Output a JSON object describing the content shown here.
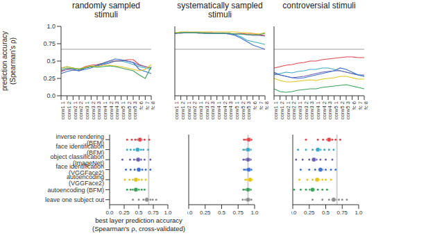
{
  "chart_data": [
    {
      "type": "line",
      "title": "randomly sampled stimuli",
      "y_label": "prediction accuracy (Spearman's ρ)",
      "categories": [
        "conv1 1",
        "conv1 2",
        "conv2 1",
        "conv2 2",
        "conv3 1",
        "conv3 2",
        "conv3 3",
        "conv4 1",
        "conv4 2",
        "conv4 3",
        "conv5 1",
        "conv5 2",
        "conv5 3",
        "fc 6",
        "fc 7",
        "fc 8"
      ],
      "ylim": [
        0,
        1
      ],
      "yticks": [
        {
          "value": 0,
          "label": "0.0"
        },
        0.25,
        0.5,
        0.75,
        {
          "value": 1,
          "label": "1.0"
        }
      ],
      "noise_ceiling": 0.67,
      "series": [
        {
          "color": "#e0474c",
          "values": [
            0.35,
            0.38,
            0.4,
            0.38,
            0.42,
            0.44,
            0.45,
            0.47,
            0.5,
            0.5,
            0.5,
            0.52,
            0.52,
            0.45,
            0.42,
            0.4
          ]
        },
        {
          "color": "#3aa9c4",
          "values": [
            0.4,
            0.42,
            0.4,
            0.38,
            0.4,
            0.42,
            0.44,
            0.46,
            0.48,
            0.5,
            0.5,
            0.48,
            0.45,
            0.42,
            0.4,
            0.38
          ]
        },
        {
          "color": "#6d5fb0",
          "values": [
            0.36,
            0.38,
            0.38,
            0.36,
            0.4,
            0.42,
            0.43,
            0.45,
            0.47,
            0.5,
            0.51,
            0.5,
            0.48,
            0.44,
            0.42,
            0.4
          ]
        },
        {
          "color": "#3d6fd0",
          "values": [
            0.32,
            0.35,
            0.37,
            0.36,
            0.38,
            0.4,
            0.44,
            0.47,
            0.5,
            0.53,
            0.52,
            0.5,
            0.48,
            0.38,
            0.35,
            0.32
          ]
        },
        {
          "color": "#e3c41c",
          "values": [
            0.4,
            0.42,
            0.4,
            0.39,
            0.41,
            0.43,
            0.42,
            0.44,
            0.44,
            0.43,
            0.42,
            0.4,
            0.38,
            0.36,
            0.38,
            0.45
          ]
        },
        {
          "color": "#3aa35a",
          "values": [
            0.38,
            0.4,
            0.39,
            0.38,
            0.4,
            0.42,
            0.41,
            0.42,
            0.43,
            0.42,
            0.4,
            0.38,
            0.36,
            0.3,
            0.25,
            0.42
          ]
        }
      ]
    },
    {
      "type": "line",
      "title": "systematically sampled stimuli",
      "tick_labels": "x",
      "categories": [
        "conv1 1",
        "conv1 2",
        "conv2 1",
        "conv2 2",
        "conv3 1",
        "conv3 2",
        "conv3 3",
        "conv4 1",
        "conv4 2",
        "conv4 3",
        "conv5 1",
        "conv5 2",
        "conv5 3",
        "fc 6",
        "fc 7",
        "fc 8"
      ],
      "ylim": [
        0,
        1
      ],
      "yticks": [
        {
          "value": 0,
          "label": "0.0"
        },
        0.25,
        0.5,
        0.75,
        {
          "value": 1,
          "label": "1.0"
        }
      ],
      "noise_ceiling": 0.67,
      "series": [
        {
          "color": "#e0474c",
          "values": [
            0.9,
            0.91,
            0.91,
            0.91,
            0.91,
            0.91,
            0.91,
            0.9,
            0.9,
            0.9,
            0.89,
            0.9,
            0.89,
            0.89,
            0.88,
            0.87
          ]
        },
        {
          "color": "#3aa9c4",
          "values": [
            0.9,
            0.91,
            0.91,
            0.91,
            0.91,
            0.91,
            0.9,
            0.9,
            0.9,
            0.9,
            0.88,
            0.85,
            0.8,
            0.78,
            0.76,
            0.74
          ]
        },
        {
          "color": "#6d5fb0",
          "values": [
            0.9,
            0.9,
            0.91,
            0.91,
            0.9,
            0.9,
            0.9,
            0.9,
            0.9,
            0.89,
            0.89,
            0.89,
            0.88,
            0.87,
            0.87,
            0.86
          ]
        },
        {
          "color": "#3d6fd0",
          "values": [
            0.9,
            0.91,
            0.91,
            0.91,
            0.91,
            0.9,
            0.9,
            0.9,
            0.9,
            0.89,
            0.87,
            0.83,
            0.78,
            0.73,
            0.7,
            0.67
          ]
        },
        {
          "color": "#e3c41c",
          "values": [
            0.91,
            0.92,
            0.92,
            0.92,
            0.92,
            0.92,
            0.92,
            0.92,
            0.92,
            0.92,
            0.92,
            0.91,
            0.91,
            0.9,
            0.89,
            0.91
          ]
        },
        {
          "color": "#3aa35a",
          "values": [
            0.9,
            0.91,
            0.91,
            0.91,
            0.91,
            0.9,
            0.9,
            0.9,
            0.9,
            0.9,
            0.89,
            0.89,
            0.88,
            0.88,
            0.88,
            0.9
          ]
        }
      ]
    },
    {
      "type": "line",
      "title": "controversial stimuli",
      "tick_labels": "x",
      "categories": [
        "conv1 1",
        "conv1 2",
        "conv2 1",
        "conv2 2",
        "conv3 1",
        "conv3 2",
        "conv3 3",
        "conv4 1",
        "conv4 2",
        "conv4 3",
        "conv5 1",
        "conv5 2",
        "conv5 3",
        "fc 6",
        "fc 7",
        "fc 8"
      ],
      "ylim": [
        0,
        1
      ],
      "yticks": [
        {
          "value": 0,
          "label": "0.0"
        },
        0.25,
        0.5,
        0.75,
        {
          "value": 1,
          "label": "1.0"
        }
      ],
      "noise_ceiling": 0.67,
      "series": [
        {
          "color": "#e0474c",
          "values": [
            0.4,
            0.42,
            0.44,
            0.45,
            0.47,
            0.48,
            0.5,
            0.5,
            0.52,
            0.53,
            0.54,
            0.55,
            0.56,
            0.56,
            0.55,
            0.55
          ]
        },
        {
          "color": "#3aa9c4",
          "values": [
            0.3,
            0.32,
            0.34,
            0.33,
            0.35,
            0.36,
            0.38,
            0.38,
            0.4,
            0.4,
            0.38,
            0.36,
            0.34,
            0.32,
            0.3,
            0.28
          ]
        },
        {
          "color": "#6d5fb0",
          "values": [
            0.32,
            0.3,
            0.28,
            0.26,
            0.27,
            0.28,
            0.3,
            0.32,
            0.34,
            0.35,
            0.36,
            0.36,
            0.34,
            0.32,
            0.3,
            0.3
          ]
        },
        {
          "color": "#3d6fd0",
          "values": [
            0.34,
            0.3,
            0.28,
            0.26,
            0.25,
            0.26,
            0.28,
            0.3,
            0.32,
            0.34,
            0.36,
            0.4,
            0.38,
            0.34,
            0.3,
            0.28
          ]
        },
        {
          "color": "#e3c41c",
          "values": [
            0.25,
            0.22,
            0.2,
            0.2,
            0.21,
            0.22,
            0.23,
            0.22,
            0.24,
            0.25,
            0.26,
            0.28,
            0.28,
            0.26,
            0.24,
            0.24
          ]
        },
        {
          "color": "#3aa35a",
          "values": [
            0.1,
            0.06,
            0.05,
            0.06,
            0.08,
            0.09,
            0.1,
            0.1,
            0.12,
            0.13,
            0.14,
            0.15,
            0.16,
            0.14,
            0.12,
            0.1
          ]
        }
      ]
    },
    {
      "type": "strip",
      "x_label": "best layer prediction accuracy (Spearman's ρ, cross-validated)",
      "xlim": [
        0,
        1
      ],
      "xticks": [
        {
          "value": 0,
          "label": "0.0"
        },
        0.25,
        0.5,
        0.75,
        {
          "value": 1,
          "label": "1.0"
        }
      ],
      "noise_ceiling": 0.67,
      "series": [
        {
          "name": "inverse rendering (BFM)",
          "color": "#e0474c",
          "values": [
            0.3,
            0.38,
            0.44,
            0.48,
            0.52,
            0.55,
            0.6,
            0.68
          ],
          "mean": 0.52
        },
        {
          "name": "face identification (BFM)",
          "color": "#3aa9c4",
          "values": [
            0.3,
            0.36,
            0.42,
            0.47,
            0.5,
            0.54,
            0.58,
            0.66
          ],
          "mean": 0.48
        },
        {
          "name": "object classification (ImageNet)",
          "color": "#6d5fb0",
          "values": [
            0.22,
            0.35,
            0.42,
            0.46,
            0.5,
            0.54,
            0.6,
            0.7
          ],
          "mean": 0.49
        },
        {
          "name": "face identification (VGGFace2)",
          "color": "#3d6fd0",
          "values": [
            0.28,
            0.36,
            0.43,
            0.48,
            0.52,
            0.56,
            0.62,
            0.7
          ],
          "mean": 0.5
        },
        {
          "name": "autoencoding (VGGFace2)",
          "color": "#e3c41c",
          "values": [
            0.26,
            0.34,
            0.4,
            0.44,
            0.47,
            0.5,
            0.55,
            0.62
          ],
          "mean": 0.45
        },
        {
          "name": "autoencoding (BFM)",
          "color": "#3aa35a",
          "values": [
            0.3,
            0.36,
            0.4,
            0.44,
            0.47,
            0.5,
            0.55,
            0.6
          ],
          "mean": 0.45
        },
        {
          "name": "leave one subject out",
          "color": "#8c8c8c",
          "values": [
            0.4,
            0.5,
            0.58,
            0.62,
            0.66,
            0.7,
            0.74,
            0.8
          ],
          "mean": 0.64
        }
      ]
    },
    {
      "type": "strip",
      "tick_labels": "x",
      "xlim": [
        0,
        1
      ],
      "xticks": [
        {
          "value": 0,
          "label": "0.0"
        },
        0.25,
        0.5,
        0.75,
        {
          "value": 1,
          "label": "1.0"
        }
      ],
      "noise_ceiling": 0.9,
      "series": [
        {
          "color": "#e0474c",
          "values": [
            0.84,
            0.87,
            0.89,
            0.9,
            0.91,
            0.92,
            0.93,
            0.95
          ],
          "mean": 0.91
        },
        {
          "color": "#3aa9c4",
          "values": [
            0.83,
            0.86,
            0.88,
            0.9,
            0.91,
            0.92,
            0.93,
            0.94
          ],
          "mean": 0.9
        },
        {
          "color": "#6d5fb0",
          "values": [
            0.83,
            0.86,
            0.88,
            0.9,
            0.91,
            0.92,
            0.93,
            0.94
          ],
          "mean": 0.9
        },
        {
          "color": "#3d6fd0",
          "values": [
            0.84,
            0.87,
            0.89,
            0.9,
            0.91,
            0.92,
            0.93,
            0.95
          ],
          "mean": 0.91
        },
        {
          "color": "#e3c41c",
          "values": [
            0.86,
            0.89,
            0.91,
            0.92,
            0.93,
            0.94,
            0.95,
            0.96
          ],
          "mean": 0.93
        },
        {
          "color": "#3aa35a",
          "values": [
            0.83,
            0.86,
            0.88,
            0.9,
            0.91,
            0.92,
            0.93,
            0.94
          ],
          "mean": 0.9
        },
        {
          "color": "#8c8c8c",
          "values": [
            0.82,
            0.86,
            0.88,
            0.9,
            0.91,
            0.92,
            0.93,
            0.95
          ],
          "mean": 0.9
        }
      ]
    },
    {
      "type": "strip",
      "tick_labels": "x",
      "xlim": [
        0,
        1
      ],
      "xticks": [
        {
          "value": 0,
          "label": "0.0"
        },
        0.25,
        0.5,
        0.75,
        {
          "value": 1,
          "label": "1.0"
        }
      ],
      "noise_ceiling": 0.67,
      "series": [
        {
          "color": "#e0474c",
          "values": [
            0.2,
            0.38,
            0.46,
            0.52,
            0.56,
            0.6,
            0.65,
            0.72
          ],
          "mean": 0.55
        },
        {
          "color": "#3aa9c4",
          "values": [
            0.08,
            0.2,
            0.3,
            0.36,
            0.42,
            0.48,
            0.55,
            0.62
          ],
          "mean": 0.38
        },
        {
          "color": "#6d5fb0",
          "values": [
            0.05,
            0.15,
            0.25,
            0.3,
            0.36,
            0.42,
            0.5,
            0.6
          ],
          "mean": 0.32
        },
        {
          "color": "#3d6fd0",
          "values": [
            0.12,
            0.25,
            0.34,
            0.4,
            0.45,
            0.5,
            0.58,
            0.65
          ],
          "mean": 0.42
        },
        {
          "color": "#e3c41c",
          "values": [
            0.1,
            0.22,
            0.3,
            0.35,
            0.4,
            0.45,
            0.5,
            0.58
          ],
          "mean": 0.37
        },
        {
          "color": "#3aa35a",
          "values": [
            0.02,
            0.12,
            0.2,
            0.26,
            0.32,
            0.38,
            0.45,
            0.52
          ],
          "mean": 0.3
        },
        {
          "color": "#8c8c8c",
          "values": [
            0.3,
            0.45,
            0.55,
            0.6,
            0.65,
            0.7,
            0.75,
            0.82
          ],
          "mean": 0.62
        }
      ]
    }
  ]
}
